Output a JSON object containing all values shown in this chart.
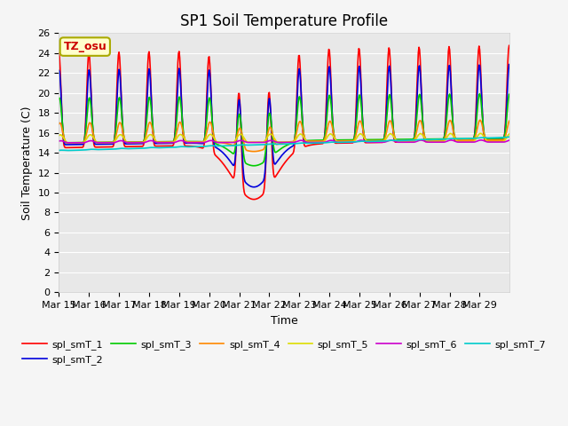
{
  "title": "SP1 Soil Temperature Profile",
  "xlabel": "Time",
  "ylabel": "Soil Temperature (C)",
  "annotation": "TZ_osu",
  "annotation_color": "#cc0000",
  "annotation_bg": "#ffffcc",
  "annotation_border": "#aaaa00",
  "ylim": [
    0,
    26
  ],
  "yticks": [
    0,
    2,
    4,
    6,
    8,
    10,
    12,
    14,
    16,
    18,
    20,
    22,
    24,
    26
  ],
  "background_color": "#e8e8e8",
  "figure_color": "#f5f5f5",
  "grid_color": "#ffffff",
  "title_fontsize": 12,
  "axis_label_fontsize": 9,
  "tick_fontsize": 8,
  "series_order": [
    "spl_smT_1",
    "spl_smT_2",
    "spl_smT_3",
    "spl_smT_4",
    "spl_smT_5",
    "spl_smT_6",
    "spl_smT_7"
  ],
  "series_colors": {
    "spl_smT_1": "#ff0000",
    "spl_smT_2": "#0000dd",
    "spl_smT_3": "#00cc00",
    "spl_smT_4": "#ff8800",
    "spl_smT_5": "#dddd00",
    "spl_smT_6": "#cc00cc",
    "spl_smT_7": "#00cccc"
  },
  "series_lw": {
    "spl_smT_1": 1.2,
    "spl_smT_2": 1.2,
    "spl_smT_3": 1.2,
    "spl_smT_4": 1.2,
    "spl_smT_5": 1.2,
    "spl_smT_6": 1.2,
    "spl_smT_7": 1.2
  }
}
